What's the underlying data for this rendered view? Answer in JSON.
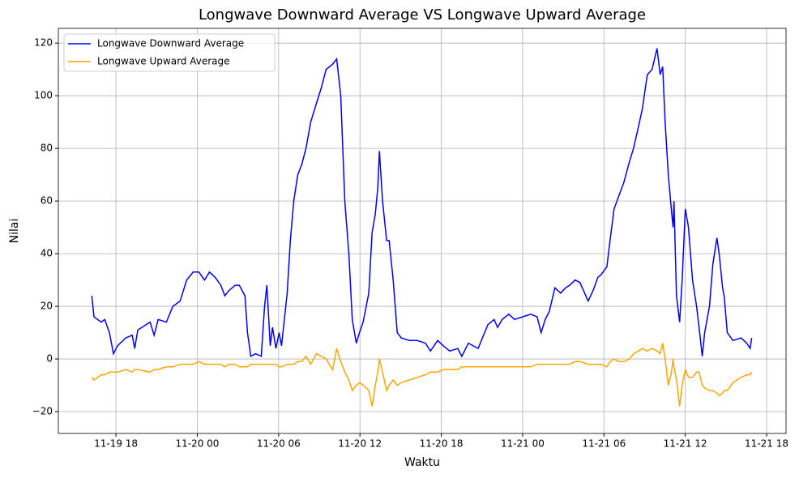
{
  "chart_data": {
    "type": "line",
    "title": "Longwave Downward Average VS Longwave Upward Average",
    "xlabel": "Waktu",
    "ylabel": "Nilai",
    "x": [
      "11-19 16:13",
      "11-19 16:23",
      "11-19 16:55",
      "11-19 17:10",
      "11-19 17:31",
      "11-19 17:49",
      "11-19 18:07",
      "11-19 18:43",
      "11-19 19:12",
      "11-19 19:23",
      "11-19 19:37",
      "11-19 20:31",
      "11-19 20:49",
      "11-19 21:07",
      "11-19 21:43",
      "11-19 22:12",
      "11-19 22:44",
      "11-19 23:13",
      "11-19 23:42",
      "11-20 00:07",
      "11-20 00:32",
      "11-20 00:54",
      "11-20 01:19",
      "11-20 01:44",
      "11-20 02:02",
      "11-20 02:20",
      "11-20 02:48",
      "11-20 03:06",
      "11-20 03:31",
      "11-20 03:42",
      "11-20 03:57",
      "11-20 04:18",
      "11-20 04:43",
      "11-20 04:58",
      "11-20 05:08",
      "11-20 05:23",
      "11-20 05:33",
      "11-20 05:48",
      "11-20 06:02",
      "11-20 06:13",
      "11-20 06:38",
      "11-20 06:52",
      "11-20 07:07",
      "11-20 07:25",
      "11-20 07:43",
      "11-20 08:01",
      "11-20 08:22",
      "11-20 08:47",
      "11-20 09:09",
      "11-20 09:30",
      "11-20 09:59",
      "11-20 10:17",
      "11-20 10:35",
      "11-20 10:53",
      "11-20 11:11",
      "11-20 11:26",
      "11-20 11:44",
      "11-20 11:58",
      "11-20 12:14",
      "11-20 12:39",
      "11-20 12:54",
      "11-20 13:08",
      "11-20 13:19",
      "11-20 13:26",
      "11-20 13:40",
      "11-20 13:58",
      "11-20 14:09",
      "11-20 14:27",
      "11-20 14:45",
      "11-20 15:03",
      "11-20 15:39",
      "11-20 16:14",
      "11-20 16:50",
      "11-20 17:12",
      "11-20 17:44",
      "11-20 18:09",
      "11-20 18:37",
      "11-20 19:13",
      "11-20 19:31",
      "11-20 20:00",
      "11-20 20:43",
      "11-20 21:26",
      "11-20 21:54",
      "11-20 22:09",
      "11-20 22:30",
      "11-20 22:59",
      "11-20 23:24",
      "11-21 00:00",
      "11-21 00:36",
      "11-21 01:04",
      "11-21 01:22",
      "11-21 01:40",
      "11-21 01:58",
      "11-21 02:23",
      "11-21 02:48",
      "11-21 03:10",
      "11-21 03:28",
      "11-21 03:53",
      "11-21 04:14",
      "11-21 04:50",
      "11-21 05:12",
      "11-21 05:33",
      "11-21 05:47",
      "11-21 06:13",
      "11-21 06:27",
      "11-21 06:45",
      "11-21 07:06",
      "11-21 07:28",
      "11-21 07:53",
      "11-21 08:11",
      "11-21 08:32",
      "11-21 08:50",
      "11-21 09:12",
      "11-21 09:33",
      "11-21 09:55",
      "11-21 10:09",
      "11-21 10:20",
      "11-21 10:31",
      "11-21 10:45",
      "11-21 10:59",
      "11-21 11:06",
      "11-21 11:10",
      "11-21 11:21",
      "11-21 11:35",
      "11-21 11:46",
      "11-21 12:00",
      "11-21 12:14",
      "11-21 12:32",
      "11-21 12:50",
      "11-21 13:01",
      "11-21 13:15",
      "11-21 13:26",
      "11-21 13:47",
      "11-21 14:02",
      "11-21 14:20",
      "11-21 14:30",
      "11-21 14:45",
      "11-21 14:52",
      "11-21 15:06",
      "11-21 15:31",
      "11-21 16:07",
      "11-21 16:32",
      "11-21 16:47",
      "11-21 16:54"
    ],
    "series": [
      {
        "name": "Longwave Downward Average",
        "color": "#0000ff",
        "values": [
          24,
          16,
          14,
          15,
          10,
          2,
          5,
          8,
          9,
          4,
          11,
          14,
          9,
          15,
          14,
          20,
          22,
          30,
          33,
          33,
          30,
          33,
          31,
          28,
          24,
          26,
          28,
          28,
          24,
          10,
          1,
          2,
          1,
          20,
          28,
          5,
          12,
          4,
          10,
          5,
          25,
          45,
          60,
          70,
          74,
          80,
          90,
          97,
          103,
          110,
          112,
          114,
          100,
          60,
          40,
          15,
          6,
          10,
          14,
          25,
          48,
          55,
          65,
          79,
          60,
          45,
          45,
          30,
          10,
          8,
          7,
          7,
          6,
          3,
          7,
          5,
          3,
          4,
          1,
          6,
          4,
          13,
          15,
          12,
          15,
          17,
          15,
          16,
          17,
          16,
          10,
          15,
          18,
          27,
          25,
          27,
          28,
          30,
          29,
          22,
          26,
          31,
          32,
          35,
          45,
          57,
          62,
          67,
          75,
          80,
          88,
          95,
          108,
          110,
          118,
          108,
          111,
          90,
          70,
          56,
          50,
          60,
          24,
          14,
          30,
          57,
          50,
          30,
          20,
          12,
          1,
          10,
          20,
          36,
          46,
          40,
          27,
          24,
          10,
          7,
          8,
          6,
          4,
          8
        ]
      },
      {
        "name": "Longwave Upward Average",
        "color": "#ffa500",
        "values": [
          -7,
          -8,
          -6,
          -6,
          -5,
          -5,
          -5,
          -4,
          -5,
          -4,
          -4,
          -5,
          -4,
          -4,
          -3,
          -3,
          -2,
          -2,
          -2,
          -1,
          -2,
          -2,
          -2,
          -2,
          -3,
          -2,
          -2,
          -3,
          -3,
          -3,
          -2,
          -2,
          -2,
          -2,
          -2,
          -2,
          -2,
          -2,
          -3,
          -3,
          -2,
          -2,
          -2,
          -1,
          -1,
          1,
          -2,
          2,
          1,
          0,
          -4,
          4,
          -1,
          -5,
          -8,
          -12,
          -10,
          -9,
          -10,
          -12,
          -18,
          -10,
          -5,
          0,
          -5,
          -12,
          -10,
          -8,
          -10,
          -9,
          -8,
          -7,
          -6,
          -5,
          -5,
          -4,
          -4,
          -4,
          -3,
          -3,
          -3,
          -3,
          -3,
          -3,
          -3,
          -3,
          -3,
          -3,
          -3,
          -2,
          -2,
          -2,
          -2,
          -2,
          -2,
          -2,
          -2,
          -1,
          -1,
          -2,
          -2,
          -2,
          -2,
          -3,
          -1,
          0,
          -1,
          -1,
          0,
          2,
          3,
          4,
          3,
          4,
          3,
          2,
          6,
          0,
          -10,
          -5,
          0,
          -3,
          -8,
          -18,
          -10,
          -4,
          -7,
          -7,
          -5,
          -5,
          -10,
          -11,
          -12,
          -12,
          -13,
          -14,
          -13,
          -12,
          -12,
          -9,
          -7,
          -6,
          -6,
          -5
        ]
      }
    ],
    "xlim": [
      "11-19 13:45",
      "11-21 19:26"
    ],
    "xticks": [
      {
        "value": "11-19 18:00",
        "label": "11-19 18"
      },
      {
        "value": "11-20 00:00",
        "label": "11-20 00"
      },
      {
        "value": "11-20 06:00",
        "label": "11-20 06"
      },
      {
        "value": "11-20 12:00",
        "label": "11-20 12"
      },
      {
        "value": "11-20 18:00",
        "label": "11-20 18"
      },
      {
        "value": "11-21 00:00",
        "label": "11-21 00"
      },
      {
        "value": "11-21 06:00",
        "label": "11-21 06"
      },
      {
        "value": "11-21 12:00",
        "label": "11-21 12"
      },
      {
        "value": "11-21 18:00",
        "label": "11-21 18"
      }
    ],
    "ylim": [
      -28.3,
      125.6
    ],
    "yticks": [
      {
        "value": -20,
        "label": "−20"
      },
      0,
      20,
      40,
      60,
      80,
      100,
      120
    ],
    "grid": true,
    "legend": "upper left"
  }
}
